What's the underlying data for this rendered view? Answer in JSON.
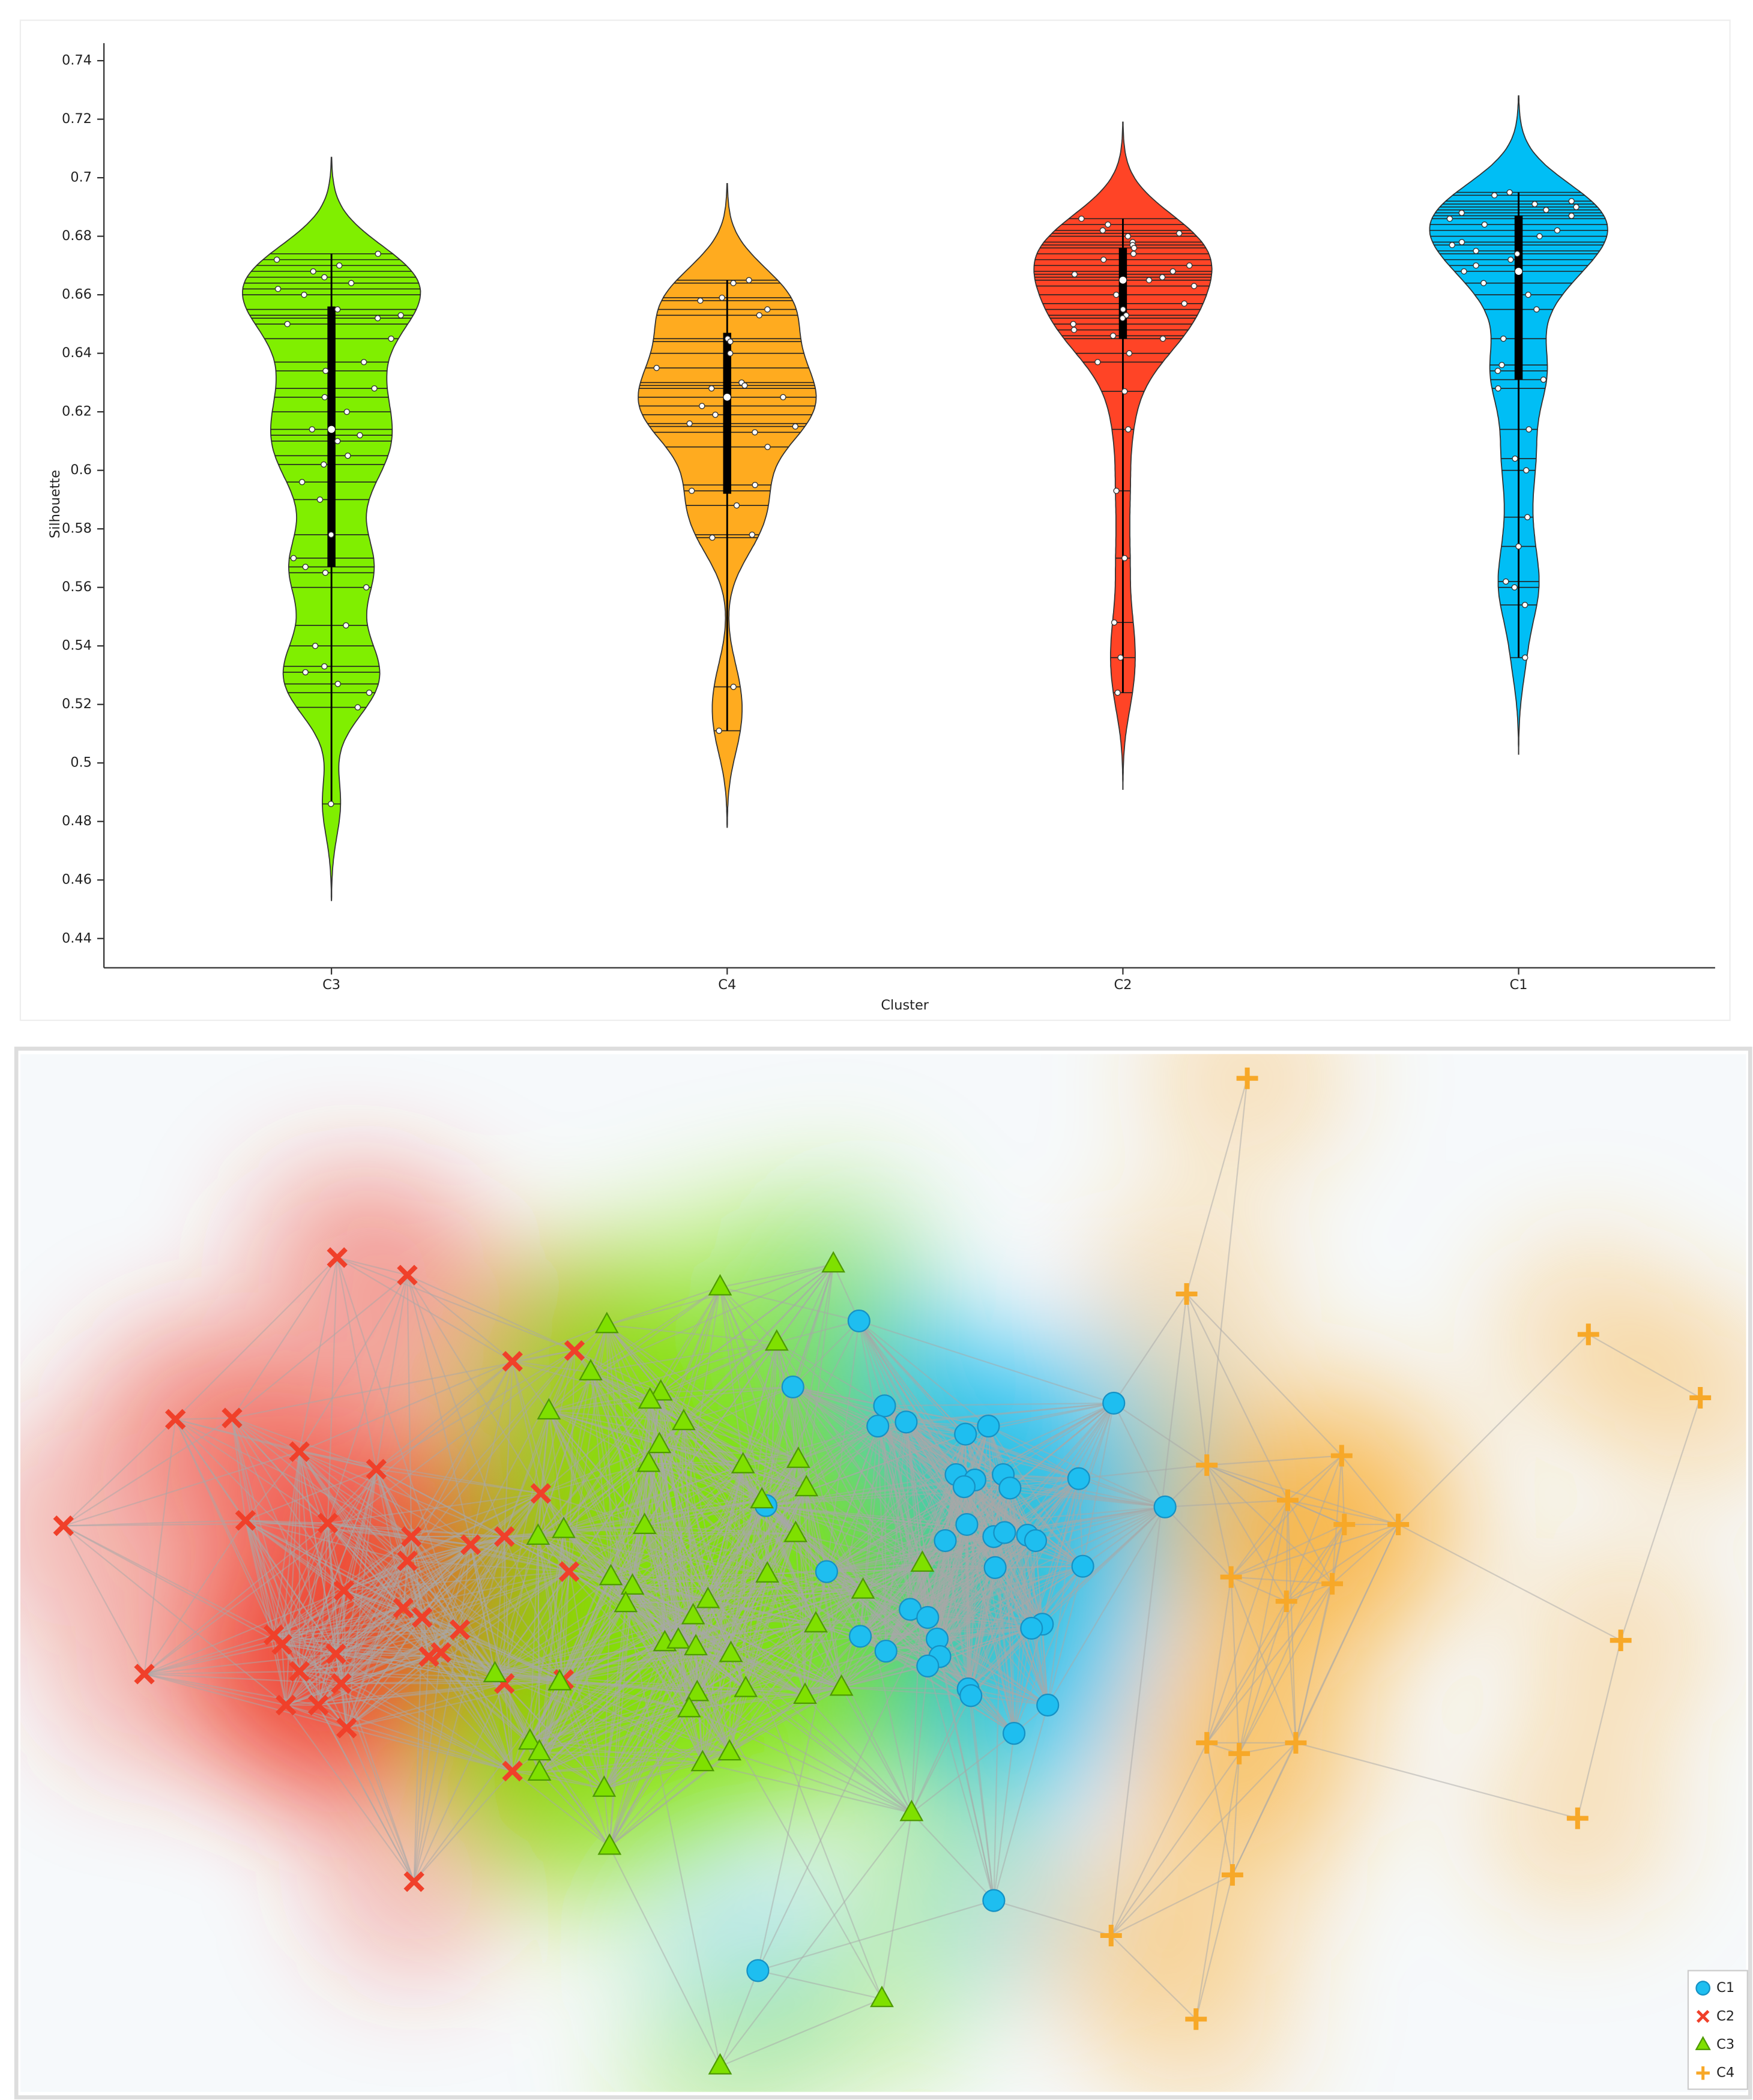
{
  "chart_data": [
    {
      "type": "violin",
      "x_label": "Cluster",
      "y_label": "Silhouette",
      "ylim": [
        0.43,
        0.746
      ],
      "yticks": [
        0.44,
        0.46,
        0.48,
        0.5,
        0.52,
        0.54,
        0.56,
        0.58,
        0.6,
        0.62,
        0.64,
        0.66,
        0.68,
        0.7,
        0.72,
        0.74
      ],
      "series": [
        {
          "name": "C3",
          "color": "#80ef00",
          "quartiles": [
            0.567,
            0.614,
            0.656
          ],
          "whiskers": [
            0.486,
            0.674
          ],
          "values": [
            0.674,
            0.672,
            0.67,
            0.668,
            0.666,
            0.664,
            0.662,
            0.66,
            0.655,
            0.653,
            0.652,
            0.65,
            0.645,
            0.637,
            0.634,
            0.628,
            0.625,
            0.62,
            0.614,
            0.612,
            0.61,
            0.605,
            0.602,
            0.596,
            0.59,
            0.578,
            0.57,
            0.567,
            0.565,
            0.56,
            0.547,
            0.54,
            0.533,
            0.531,
            0.527,
            0.524,
            0.519,
            0.486
          ]
        },
        {
          "name": "C4",
          "color": "#ffab1f",
          "quartiles": [
            0.592,
            0.625,
            0.647
          ],
          "whiskers": [
            0.511,
            0.665
          ],
          "values": [
            0.665,
            0.664,
            0.659,
            0.658,
            0.655,
            0.653,
            0.645,
            0.644,
            0.64,
            0.635,
            0.63,
            0.629,
            0.628,
            0.625,
            0.622,
            0.619,
            0.616,
            0.615,
            0.613,
            0.608,
            0.595,
            0.593,
            0.588,
            0.578,
            0.577,
            0.526,
            0.511
          ]
        },
        {
          "name": "C2",
          "color": "#ff4426",
          "quartiles": [
            0.645,
            0.665,
            0.676
          ],
          "whiskers": [
            0.524,
            0.686
          ],
          "values": [
            0.686,
            0.684,
            0.682,
            0.681,
            0.68,
            0.678,
            0.677,
            0.676,
            0.674,
            0.672,
            0.67,
            0.668,
            0.667,
            0.666,
            0.665,
            0.663,
            0.66,
            0.657,
            0.655,
            0.653,
            0.652,
            0.65,
            0.648,
            0.646,
            0.645,
            0.64,
            0.637,
            0.627,
            0.614,
            0.593,
            0.57,
            0.548,
            0.536,
            0.524
          ]
        },
        {
          "name": "C1",
          "color": "#00bef5",
          "quartiles": [
            0.631,
            0.668,
            0.687
          ],
          "whiskers": [
            0.536,
            0.695
          ],
          "values": [
            0.695,
            0.694,
            0.692,
            0.691,
            0.69,
            0.689,
            0.688,
            0.687,
            0.686,
            0.684,
            0.682,
            0.68,
            0.678,
            0.677,
            0.675,
            0.674,
            0.672,
            0.67,
            0.668,
            0.664,
            0.66,
            0.655,
            0.645,
            0.636,
            0.634,
            0.631,
            0.628,
            0.614,
            0.604,
            0.6,
            0.584,
            0.574,
            0.562,
            0.56,
            0.554,
            0.536
          ]
        }
      ]
    },
    {
      "type": "scatter",
      "xlim": [
        0,
        1280
      ],
      "ylim": [
        0,
        770
      ],
      "legend": "lower right",
      "series": [
        {
          "name": "C1",
          "color": "#1ebef0",
          "marker": "circle",
          "x": [
            622,
            573,
            641,
            636,
            657,
            718,
            701,
            811,
            694,
            708,
            729,
            700,
            734,
            785,
            849,
            553,
            702,
            686,
            722,
            730,
            747,
            753,
            598,
            723,
            788,
            660,
            673,
            758,
            750,
            623,
            642,
            680,
            682,
            673,
            703,
            705,
            762,
            737,
            722,
            547
          ],
          "y": [
            572,
            523,
            509,
            494,
            497,
            494,
            488,
            511,
            458,
            454,
            458,
            449,
            448,
            455,
            434,
            435,
            421,
            409,
            412,
            415,
            413,
            409,
            386,
            389,
            390,
            358,
            352,
            347,
            344,
            338,
            327,
            336,
            323,
            316,
            299,
            294,
            287,
            266,
            142,
            90
          ]
        },
        {
          "name": "C2",
          "color": "#f0402a",
          "marker": "x",
          "x": [
            235,
            287,
            115,
            157,
            207,
            264,
            32,
            167,
            228,
            290,
            359,
            334,
            365,
            411,
            386,
            407,
            287,
            240,
            284,
            298,
            326,
            188,
            194,
            234,
            303,
            312,
            207,
            238,
            92,
            197,
            221,
            242,
            403,
            359,
            365,
            292
          ],
          "y": [
            619,
            606,
            499,
            500,
            475,
            462,
            420,
            424,
            422,
            412,
            412,
            406,
            542,
            550,
            444,
            386,
            394,
            372,
            359,
            352,
            343,
            339,
            332,
            325,
            323,
            326,
            312,
            303,
            310,
            287,
            287,
            270,
            306,
            303,
            238,
            156
          ]
        },
        {
          "name": "C3",
          "color": "#7fe000",
          "marker": "triangle",
          "x": [
            603,
            519,
            435,
            561,
            423,
            475,
            467,
            392,
            492,
            474,
            466,
            536,
            577,
            583,
            550,
            463,
            403,
            384,
            575,
            669,
            438,
            454,
            449,
            554,
            625,
            510,
            590,
            499,
            478,
            488,
            501,
            527,
            352,
            400,
            538,
            609,
            582,
            502,
            496,
            378,
            385,
            385,
            433,
            506,
            526,
            661,
            437,
            639,
            519
          ],
          "y": [
            614,
            597,
            569,
            556,
            534,
            519,
            513,
            505,
            497,
            480,
            466,
            465,
            469,
            448,
            439,
            420,
            417,
            412,
            414,
            392,
            382,
            375,
            362,
            384,
            372,
            365,
            347,
            353,
            333,
            335,
            330,
            325,
            310,
            304,
            299,
            300,
            294,
            296,
            284,
            260,
            252,
            237,
            225,
            244,
            252,
            207,
            182,
            69,
            19
          ]
        },
        {
          "name": "C4",
          "color": "#f7a828",
          "marker": "plus",
          "x": [
            910,
            865,
            1163,
            1246,
            980,
            880,
            940,
            982,
            1022,
            898,
            939,
            973,
            1187,
            880,
            904,
            946,
            1155,
            899,
            809,
            872
          ],
          "y": [
            752,
            592,
            562,
            515,
            472,
            465,
            439,
            421,
            421,
            382,
            364,
            377,
            335,
            259,
            251,
            259,
            203,
            161,
            116,
            54
          ]
        }
      ]
    }
  ]
}
